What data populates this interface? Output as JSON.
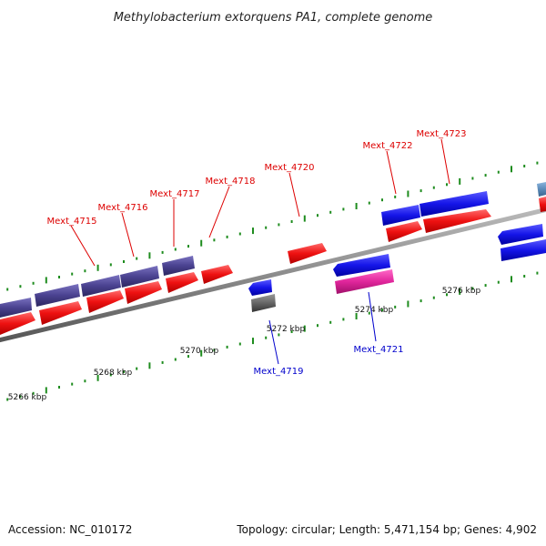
{
  "title": "Methylobacterium extorquens PA1, complete genome",
  "footer": {
    "accession": "Accession: NC_010172",
    "summary": "Topology: circular; Length: 5,471,154 bp; Genes: 4,902"
  },
  "colors": {
    "backbone": "#8c8c8c",
    "tick": "#1e8c1e",
    "cds_red": "#e41a1c",
    "cds_blue": "#1010e0",
    "cds_purple": "#4a4290",
    "cds_pink": "#e0259b",
    "cds_gray": "#666666",
    "cds_steel": "#5b8ab8",
    "label_red": "#dd0000",
    "label_blue": "#0000cc"
  },
  "scale_labels": [
    "5266 kbp",
    "5268 kbp",
    "5270 kbp",
    "5272 kbp",
    "5274 kbp",
    "5276 kbp"
  ],
  "gene_labels": [
    {
      "text": "Mext_4715",
      "strand": "forward"
    },
    {
      "text": "Mext_4716",
      "strand": "forward"
    },
    {
      "text": "Mext_4717",
      "strand": "forward"
    },
    {
      "text": "Mext_4718",
      "strand": "forward"
    },
    {
      "text": "Mext_4720",
      "strand": "forward"
    },
    {
      "text": "Mext_4722",
      "strand": "forward"
    },
    {
      "text": "Mext_4723",
      "strand": "forward"
    },
    {
      "text": "Mext_4719",
      "strand": "reverse"
    },
    {
      "text": "Mext_4721",
      "strand": "reverse"
    }
  ]
}
